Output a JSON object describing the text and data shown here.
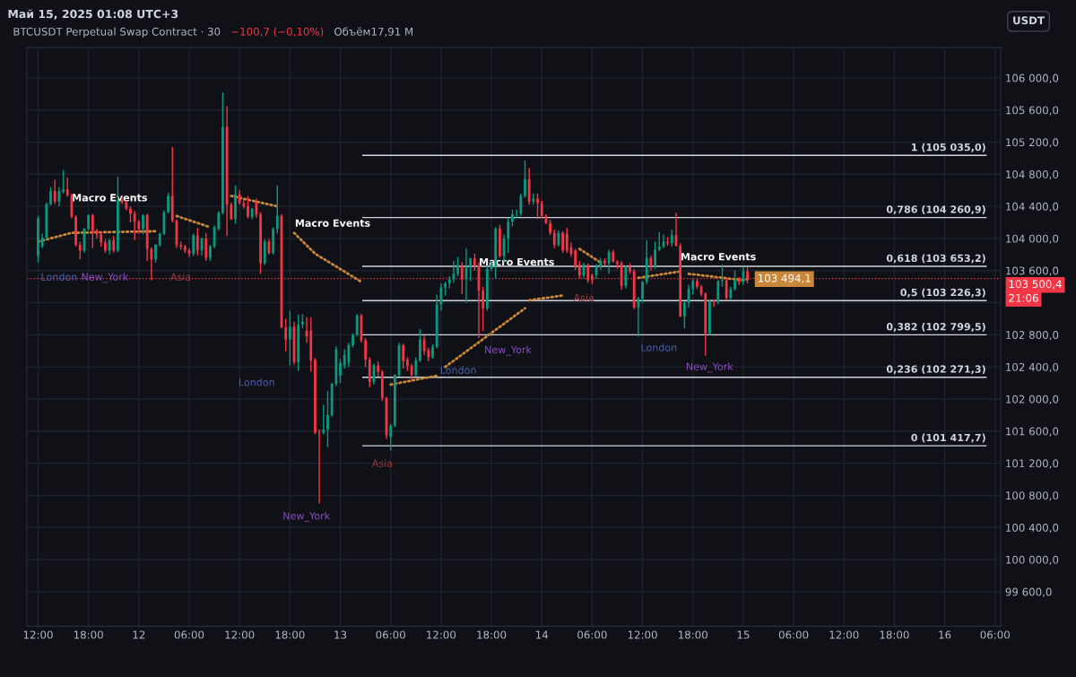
{
  "chart_data": {
    "type": "candlestick",
    "title": "Май 15, 2025 01:08 UTC+3",
    "subtitle": "BTCUSDT Perpetual Swap Contract · 30",
    "ylabel": "USDT",
    "x": [
      "2025-05-11T12:00",
      "2025-05-11T12:30",
      "2025-05-11T13:00",
      "2025-05-11T13:30",
      "2025-05-11T14:00",
      "2025-05-11T14:30",
      "2025-05-11T15:00",
      "2025-05-11T15:30",
      "2025-05-11T16:00",
      "2025-05-11T16:30",
      "2025-05-11T17:00",
      "2025-05-11T17:30",
      "2025-05-11T18:00",
      "2025-05-11T18:30",
      "2025-05-11T19:00",
      "2025-05-11T19:30",
      "2025-05-11T20:00",
      "2025-05-11T20:30",
      "2025-05-11T21:00",
      "2025-05-11T21:30",
      "2025-05-11T22:00",
      "2025-05-11T22:30",
      "2025-05-11T23:00",
      "2025-05-11T23:30",
      "2025-05-12T00:00",
      "2025-05-12T00:30",
      "2025-05-12T01:00",
      "2025-05-12T01:30",
      "2025-05-12T02:00",
      "2025-05-12T02:30",
      "2025-05-12T03:00",
      "2025-05-12T03:30",
      "2025-05-12T04:00",
      "2025-05-12T04:30",
      "2025-05-12T05:00",
      "2025-05-12T05:30",
      "2025-05-12T06:00",
      "2025-05-12T06:30",
      "2025-05-12T07:00",
      "2025-05-12T07:30",
      "2025-05-12T08:00",
      "2025-05-12T08:30",
      "2025-05-12T09:00",
      "2025-05-12T09:30",
      "2025-05-12T10:00",
      "2025-05-12T10:30",
      "2025-05-12T11:00",
      "2025-05-12T11:30",
      "2025-05-12T12:00",
      "2025-05-12T12:30",
      "2025-05-12T13:00",
      "2025-05-12T13:30",
      "2025-05-12T14:00",
      "2025-05-12T14:30",
      "2025-05-12T15:00",
      "2025-05-12T15:30",
      "2025-05-12T16:00",
      "2025-05-12T16:30",
      "2025-05-12T17:00",
      "2025-05-12T17:30",
      "2025-05-12T18:00",
      "2025-05-12T18:30",
      "2025-05-12T19:00",
      "2025-05-12T19:30",
      "2025-05-12T20:00",
      "2025-05-12T20:30",
      "2025-05-12T21:00",
      "2025-05-12T21:30",
      "2025-05-12T22:00",
      "2025-05-12T22:30",
      "2025-05-12T23:00",
      "2025-05-12T23:30",
      "2025-05-13T00:00",
      "2025-05-13T00:30",
      "2025-05-13T01:00",
      "2025-05-13T01:30",
      "2025-05-13T02:00",
      "2025-05-13T02:30",
      "2025-05-13T03:00",
      "2025-05-13T03:30",
      "2025-05-13T04:00",
      "2025-05-13T04:30",
      "2025-05-13T05:00",
      "2025-05-13T05:30",
      "2025-05-13T06:00",
      "2025-05-13T06:30",
      "2025-05-13T07:00",
      "2025-05-13T07:30",
      "2025-05-13T08:00",
      "2025-05-13T08:30",
      "2025-05-13T09:00",
      "2025-05-13T09:30",
      "2025-05-13T10:00",
      "2025-05-13T10:30",
      "2025-05-13T11:00",
      "2025-05-13T11:30",
      "2025-05-13T12:00",
      "2025-05-13T12:30",
      "2025-05-13T13:00",
      "2025-05-13T13:30",
      "2025-05-13T14:00",
      "2025-05-13T14:30",
      "2025-05-13T15:00",
      "2025-05-13T15:30",
      "2025-05-13T16:00",
      "2025-05-13T16:30",
      "2025-05-13T17:00",
      "2025-05-13T17:30",
      "2025-05-13T18:00",
      "2025-05-13T18:30",
      "2025-05-13T19:00",
      "2025-05-13T19:30",
      "2025-05-13T20:00",
      "2025-05-13T20:30",
      "2025-05-13T21:00",
      "2025-05-13T21:30",
      "2025-05-13T22:00",
      "2025-05-13T22:30",
      "2025-05-13T23:00",
      "2025-05-13T23:30",
      "2025-05-14T00:00",
      "2025-05-14T00:30",
      "2025-05-14T01:00",
      "2025-05-14T01:30",
      "2025-05-14T02:00",
      "2025-05-14T02:30",
      "2025-05-14T03:00",
      "2025-05-14T03:30",
      "2025-05-14T04:00",
      "2025-05-14T04:30",
      "2025-05-14T05:00",
      "2025-05-14T05:30",
      "2025-05-14T06:00",
      "2025-05-14T06:30",
      "2025-05-14T07:00",
      "2025-05-14T07:30",
      "2025-05-14T08:00",
      "2025-05-14T08:30",
      "2025-05-14T09:00",
      "2025-05-14T09:30",
      "2025-05-14T10:00",
      "2025-05-14T10:30",
      "2025-05-14T11:00",
      "2025-05-14T11:30",
      "2025-05-14T12:00",
      "2025-05-14T12:30",
      "2025-05-14T13:00",
      "2025-05-14T13:30",
      "2025-05-14T14:00",
      "2025-05-14T14:30",
      "2025-05-14T15:00",
      "2025-05-14T15:30",
      "2025-05-14T16:00",
      "2025-05-14T16:30",
      "2025-05-14T17:00",
      "2025-05-14T17:30",
      "2025-05-14T18:00",
      "2025-05-14T18:30",
      "2025-05-14T19:00",
      "2025-05-14T19:30",
      "2025-05-14T20:00",
      "2025-05-14T20:30",
      "2025-05-14T21:00",
      "2025-05-14T21:30",
      "2025-05-14T22:00",
      "2025-05-14T22:30",
      "2025-05-14T23:00",
      "2025-05-14T23:30",
      "2025-05-15T00:00",
      "2025-05-15T00:30"
    ],
    "ohlc": [
      [
        103780,
        104280,
        103700,
        104250
      ],
      [
        103900,
        104060,
        103880,
        104010
      ],
      [
        104010,
        104450,
        103990,
        104430
      ],
      [
        104430,
        104640,
        104410,
        104590
      ],
      [
        104590,
        104730,
        104430,
        104460
      ],
      [
        104460,
        104640,
        104400,
        104590
      ],
      [
        104580,
        104850,
        104560,
        104610
      ],
      [
        104610,
        104760,
        104520,
        104540
      ],
      [
        104540,
        104560,
        104250,
        104270
      ],
      [
        104270,
        104290,
        103900,
        103920
      ],
      [
        103920,
        103960,
        103740,
        103850
      ],
      [
        103850,
        104130,
        103820,
        104120
      ],
      [
        104120,
        104300,
        104100,
        104290
      ],
      [
        104290,
        104310,
        103880,
        104070
      ],
      [
        104100,
        104120,
        104000,
        104050
      ],
      [
        104050,
        104090,
        103900,
        103950
      ],
      [
        103950,
        103990,
        103820,
        103850
      ],
      [
        103850,
        103990,
        103800,
        103980
      ],
      [
        103980,
        104030,
        103820,
        103850
      ],
      [
        103850,
        104770,
        103830,
        104480
      ],
      [
        104480,
        104510,
        104430,
        104450
      ],
      [
        104450,
        104470,
        104350,
        104370
      ],
      [
        104370,
        104400,
        104200,
        104310
      ],
      [
        104310,
        104340,
        103980,
        104210
      ],
      [
        104210,
        104230,
        104060,
        104120
      ],
      [
        104120,
        104300,
        104050,
        104290
      ],
      [
        104290,
        104310,
        103720,
        103870
      ],
      [
        103870,
        103890,
        103480,
        103740
      ],
      [
        103740,
        103930,
        103700,
        103920
      ],
      [
        103920,
        104070,
        103900,
        104060
      ],
      [
        104060,
        104350,
        104040,
        104330
      ],
      [
        104330,
        104570,
        104310,
        104530
      ],
      [
        104530,
        105140,
        104200,
        104220
      ],
      [
        104220,
        104240,
        103880,
        103920
      ],
      [
        103920,
        103960,
        103860,
        103900
      ],
      [
        103900,
        103920,
        103820,
        103850
      ],
      [
        103850,
        103880,
        103770,
        103810
      ],
      [
        103810,
        104060,
        103780,
        104040
      ],
      [
        104040,
        104130,
        103790,
        103850
      ],
      [
        103850,
        104010,
        103790,
        104000
      ],
      [
        104000,
        104070,
        103720,
        103760
      ],
      [
        103760,
        103920,
        103720,
        103900
      ],
      [
        103900,
        104160,
        103880,
        104140
      ],
      [
        104120,
        104340,
        104100,
        104320
      ],
      [
        104320,
        105820,
        104300,
        105390
      ],
      [
        105390,
        105650,
        104030,
        104420
      ],
      [
        104420,
        104450,
        104230,
        104240
      ],
      [
        104240,
        104660,
        104180,
        104550
      ],
      [
        104550,
        104600,
        104420,
        104440
      ],
      [
        104440,
        104480,
        104370,
        104400
      ],
      [
        104400,
        104530,
        104250,
        104270
      ],
      [
        104270,
        104380,
        104240,
        104370
      ],
      [
        104460,
        104500,
        104260,
        104300
      ],
      [
        104300,
        104330,
        103560,
        103690
      ],
      [
        103690,
        103990,
        103670,
        103960
      ],
      [
        103960,
        103990,
        103800,
        103820
      ],
      [
        103820,
        104140,
        103800,
        104120
      ],
      [
        104120,
        104660,
        104060,
        104280
      ],
      [
        104280,
        104300,
        102880,
        102890
      ],
      [
        102890,
        103000,
        102590,
        102740
      ],
      [
        102740,
        103100,
        102420,
        102900
      ],
      [
        102900,
        102960,
        102430,
        102460
      ],
      [
        102460,
        103050,
        102350,
        102930
      ],
      [
        102930,
        103060,
        102880,
        102960
      ],
      [
        102850,
        103020,
        102700,
        102780
      ],
      [
        102850,
        103020,
        102340,
        102480
      ],
      [
        102490,
        102510,
        101560,
        101580
      ],
      [
        101580,
        101620,
        100700,
        101570
      ],
      [
        101580,
        101930,
        101560,
        101620
      ],
      [
        101620,
        102100,
        101400,
        101800
      ],
      [
        101800,
        102200,
        101780,
        102190
      ],
      [
        102190,
        102660,
        102160,
        102620
      ],
      [
        102290,
        102500,
        102200,
        102450
      ],
      [
        102420,
        102620,
        102380,
        102550
      ],
      [
        102450,
        102700,
        102400,
        102670
      ],
      [
        102670,
        102820,
        102640,
        102800
      ],
      [
        102800,
        103060,
        102780,
        103040
      ],
      [
        103040,
        103060,
        102700,
        102730
      ],
      [
        102730,
        102760,
        102400,
        102490
      ],
      [
        102490,
        102520,
        102150,
        102210
      ],
      [
        102210,
        102440,
        102180,
        102420
      ],
      [
        102420,
        102470,
        102280,
        102340
      ],
      [
        102340,
        102360,
        101980,
        102010
      ],
      [
        102010,
        102030,
        101500,
        101550
      ],
      [
        101530,
        101690,
        101360,
        101670
      ],
      [
        101670,
        102310,
        101650,
        102300
      ],
      [
        102300,
        102700,
        102280,
        102670
      ],
      [
        102670,
        102690,
        102380,
        102470
      ],
      [
        102490,
        102520,
        102350,
        102410
      ],
      [
        102410,
        102440,
        102220,
        102300
      ],
      [
        102300,
        102520,
        102280,
        102480
      ],
      [
        102480,
        102870,
        102460,
        102740
      ],
      [
        102740,
        102790,
        102550,
        102600
      ],
      [
        102610,
        102640,
        102470,
        102520
      ],
      [
        102520,
        102680,
        102500,
        102650
      ],
      [
        102650,
        103300,
        102630,
        103180
      ],
      [
        103180,
        103440,
        103100,
        103390
      ],
      [
        103390,
        103460,
        103290,
        103440
      ],
      [
        103440,
        103530,
        103380,
        103490
      ],
      [
        103490,
        103720,
        103450,
        103560
      ],
      [
        103560,
        103770,
        103530,
        103670
      ],
      [
        103670,
        103710,
        103310,
        103490
      ],
      [
        103490,
        103880,
        103200,
        103650
      ],
      [
        103650,
        103760,
        103470,
        103750
      ],
      [
        103750,
        103810,
        103600,
        103660
      ],
      [
        103660,
        103700,
        102760,
        103350
      ],
      [
        103350,
        103400,
        102850,
        103130
      ],
      [
        103130,
        103660,
        103100,
        103620
      ],
      [
        103620,
        103700,
        103600,
        103680
      ],
      [
        103680,
        104140,
        103500,
        104120
      ],
      [
        104120,
        104170,
        103760,
        103780
      ],
      [
        103780,
        104050,
        103700,
        104000
      ],
      [
        104000,
        104260,
        103820,
        104210
      ],
      [
        104210,
        104360,
        104150,
        104300
      ],
      [
        104300,
        104360,
        104250,
        104310
      ],
      [
        104310,
        104560,
        104280,
        104530
      ],
      [
        104530,
        104970,
        104510,
        104740
      ],
      [
        104740,
        104880,
        104420,
        104460
      ],
      [
        104460,
        104560,
        104420,
        104500
      ],
      [
        104500,
        104560,
        104240,
        104440
      ],
      [
        104440,
        104470,
        104250,
        104280
      ],
      [
        104280,
        104300,
        104180,
        104190
      ],
      [
        104190,
        104230,
        104040,
        104070
      ],
      [
        104070,
        104110,
        103880,
        103920
      ],
      [
        103920,
        104100,
        103900,
        104070
      ],
      [
        104070,
        104090,
        103820,
        103850
      ],
      [
        104060,
        104130,
        103820,
        103850
      ],
      [
        103890,
        103950,
        103770,
        103810
      ],
      [
        103850,
        103870,
        103610,
        103650
      ],
      [
        103670,
        103720,
        103500,
        103540
      ],
      [
        103540,
        103700,
        103500,
        103670
      ],
      [
        103670,
        103690,
        103450,
        103480
      ],
      [
        103540,
        103560,
        103430,
        103480
      ],
      [
        103540,
        103680,
        103500,
        103650
      ],
      [
        103650,
        103760,
        103610,
        103720
      ],
      [
        103720,
        103750,
        103660,
        103690
      ],
      [
        103690,
        103860,
        103560,
        103830
      ],
      [
        103830,
        103860,
        103700,
        103710
      ],
      [
        103710,
        103730,
        103620,
        103680
      ],
      [
        103690,
        103720,
        103360,
        103410
      ],
      [
        103410,
        103660,
        103380,
        103650
      ],
      [
        103650,
        103690,
        103560,
        103590
      ],
      [
        103590,
        103620,
        103120,
        103140
      ],
      [
        103140,
        103270,
        102780,
        103250
      ],
      [
        103250,
        103470,
        103200,
        103460
      ],
      [
        103460,
        103980,
        103430,
        103760
      ],
      [
        103760,
        103790,
        103600,
        103650
      ],
      [
        103650,
        103960,
        103620,
        103860
      ],
      [
        103860,
        104080,
        103840,
        103900
      ],
      [
        103900,
        104050,
        103880,
        103960
      ],
      [
        103960,
        104020,
        103910,
        103940
      ],
      [
        103940,
        104110,
        103900,
        104040
      ],
      [
        104040,
        104320,
        103900,
        103910
      ],
      [
        103910,
        103940,
        103020,
        103030
      ],
      [
        103030,
        103220,
        102880,
        103200
      ],
      [
        103200,
        103420,
        103140,
        103370
      ],
      [
        103370,
        103500,
        103300,
        103470
      ],
      [
        103470,
        103500,
        103370,
        103400
      ],
      [
        103400,
        103420,
        103280,
        103310
      ],
      [
        103310,
        103330,
        102540,
        102820
      ],
      [
        102820,
        103240,
        102800,
        103220
      ],
      [
        103220,
        103240,
        103150,
        103210
      ],
      [
        103210,
        103480,
        103180,
        103470
      ],
      [
        103470,
        103680,
        103400,
        103480
      ],
      [
        103480,
        103520,
        103230,
        103260
      ],
      [
        103260,
        103400,
        103230,
        103370
      ],
      [
        103370,
        103600,
        103350,
        103480
      ],
      [
        103480,
        103520,
        103420,
        103460
      ],
      [
        103460,
        103650,
        103420,
        103590
      ],
      [
        103590,
        103640,
        103440,
        103500.4
      ]
    ],
    "series": [
      {
        "type": "line",
        "color": "#c8873a",
        "line_style": "dotted",
        "x": [
          "2025-05-11T12:00",
          "2025-05-11T16:00",
          "2025-05-12T02:00",
          "2025-05-12T03:00",
          "2025-05-12T04:30",
          "2025-05-12T08:30",
          "2025-05-12T09:30",
          "2025-05-12T11:00",
          "2025-05-12T16:30",
          "2025-05-12T17:30",
          "2025-05-12T18:30",
          "2025-05-12T21:00",
          "2025-05-13T02:30",
          "2025-05-13T04:00",
          "2025-05-13T06:00",
          "2025-05-13T11:30",
          "2025-05-13T12:00",
          "2025-05-13T12:30",
          "2025-05-13T22:00",
          "2025-05-13T22:15",
          "2025-05-13T22:30",
          "2025-05-14T02:30",
          "2025-05-14T03:30",
          "2025-05-14T04:30",
          "2025-05-14T07:00",
          "2025-05-14T09:00",
          "2025-05-14T11:30",
          "2025-05-14T16:30",
          "2025-05-14T17:00",
          "2025-05-14T17:30",
          "2025-05-15T00:00",
          "2025-05-15T00:30"
        ],
        "values": [
          103960,
          104070,
          104090,
          null,
          104280,
          104140,
          null,
          104530,
          104400,
          null,
          104070,
          103810,
          103460,
          null,
          102180,
          102290,
          null,
          102400,
          103130,
          null,
          103230,
          103290,
          null,
          103870,
          103700,
          null,
          103510,
          103590,
          null,
          103560,
          103480,
          103494.1
        ],
        "value_labels": [
          null,
          null,
          null,
          null,
          null,
          null,
          null,
          null,
          null,
          null,
          null,
          null,
          null,
          null,
          null,
          null,
          null,
          null,
          null,
          null,
          null,
          null,
          null,
          null,
          null,
          null,
          null,
          null,
          null,
          null,
          null,
          "103 494,1"
        ]
      }
    ],
    "ref_lines": [
      {
        "axis": "y",
        "value": 105035,
        "label": "1 (105 035,0)",
        "color": "#d1d4dc",
        "line_style": "solid"
      },
      {
        "axis": "y",
        "value": 104260.9,
        "label": "0,786 (104 260,9)",
        "color": "#d1d4dc",
        "line_style": "solid"
      },
      {
        "axis": "y",
        "value": 103653.2,
        "label": "0,618 (103 653,2)",
        "color": "#d1d4dc",
        "line_style": "solid"
      },
      {
        "axis": "y",
        "value": 103226.3,
        "label": "0,5 (103 226,3)",
        "color": "#d1d4dc",
        "line_style": "solid"
      },
      {
        "axis": "y",
        "value": 102799.5,
        "label": "0,382 (102 799,5)",
        "color": "#d1d4dc",
        "line_style": "solid"
      },
      {
        "axis": "y",
        "value": 102271.3,
        "label": "0,236 (102 271,3)",
        "color": "#d1d4dc",
        "line_style": "solid"
      },
      {
        "axis": "y",
        "value": 101417.7,
        "label": "0 (101 417,7)",
        "color": "#d1d4dc",
        "line_style": "solid"
      },
      {
        "axis": "y",
        "value": 103500.4,
        "label": "103 500,4",
        "color": "#f23645",
        "line_style": "dotted"
      }
    ],
    "annotations": [
      "−100,7 (−0,10%)",
      "Объём17,91 M",
      "21:06",
      "London",
      "New_York",
      "Macro Events",
      "Asia",
      "London",
      "Macro Events",
      "New_York",
      "Asia",
      "London",
      "New_York",
      "Macro Events",
      "Asia",
      "London",
      "New_York",
      "Macro Events"
    ],
    "xlim": [
      "2025-05-11T10:40",
      "2025-05-16T06:40"
    ],
    "xticks": [
      {
        "value": "2025-05-11T12:00",
        "label": "12:00"
      },
      {
        "value": "2025-05-11T18:00",
        "label": "18:00"
      },
      {
        "value": "2025-05-12T00:00",
        "label": "12"
      },
      {
        "value": "2025-05-12T06:00",
        "label": "06:00"
      },
      {
        "value": "2025-05-12T12:00",
        "label": "12:00"
      },
      {
        "value": "2025-05-12T18:00",
        "label": "18:00"
      },
      {
        "value": "2025-05-13T00:00",
        "label": "13"
      },
      {
        "value": "2025-05-13T06:00",
        "label": "06:00"
      },
      {
        "value": "2025-05-13T12:00",
        "label": "12:00"
      },
      {
        "value": "2025-05-13T18:00",
        "label": "18:00"
      },
      {
        "value": "2025-05-14T00:00",
        "label": "14"
      },
      {
        "value": "2025-05-14T06:00",
        "label": "06:00"
      },
      {
        "value": "2025-05-14T12:00",
        "label": "12:00"
      },
      {
        "value": "2025-05-14T18:00",
        "label": "18:00"
      },
      {
        "value": "2025-05-15T00:00",
        "label": "15"
      },
      {
        "value": "2025-05-15T06:00",
        "label": "06:00"
      },
      {
        "value": "2025-05-15T12:00",
        "label": "12:00"
      },
      {
        "value": "2025-05-15T18:00",
        "label": "18:00"
      },
      {
        "value": "2025-05-16T00:00",
        "label": "16"
      },
      {
        "value": "2025-05-16T06:00",
        "label": "06:00"
      }
    ],
    "ylim": [
      99170,
      106380
    ],
    "yticks": [
      {
        "value": 99600,
        "label": "99 600,0"
      },
      {
        "value": 100000,
        "label": "100 000,0"
      },
      {
        "value": 100400,
        "label": "100 400,0"
      },
      {
        "value": 100800,
        "label": "100 800,0"
      },
      {
        "value": 101200,
        "label": "101 200,0"
      },
      {
        "value": 101600,
        "label": "101 600,0"
      },
      {
        "value": 102000,
        "label": "102 000,0"
      },
      {
        "value": 102400,
        "label": "102 400,0"
      },
      {
        "value": 102800,
        "label": "102 800,0"
      },
      {
        "value": 103200,
        "label": null
      },
      {
        "value": 103600,
        "label": "103 600,0"
      },
      {
        "value": 104000,
        "label": "104 000,0"
      },
      {
        "value": 104400,
        "label": "104 400,0"
      },
      {
        "value": 104800,
        "label": "104 800,0"
      },
      {
        "value": 105200,
        "label": "105 200,0"
      },
      {
        "value": 105600,
        "label": "105 600,0"
      },
      {
        "value": 106000,
        "label": "106 000,0"
      }
    ],
    "grid": true
  }
}
